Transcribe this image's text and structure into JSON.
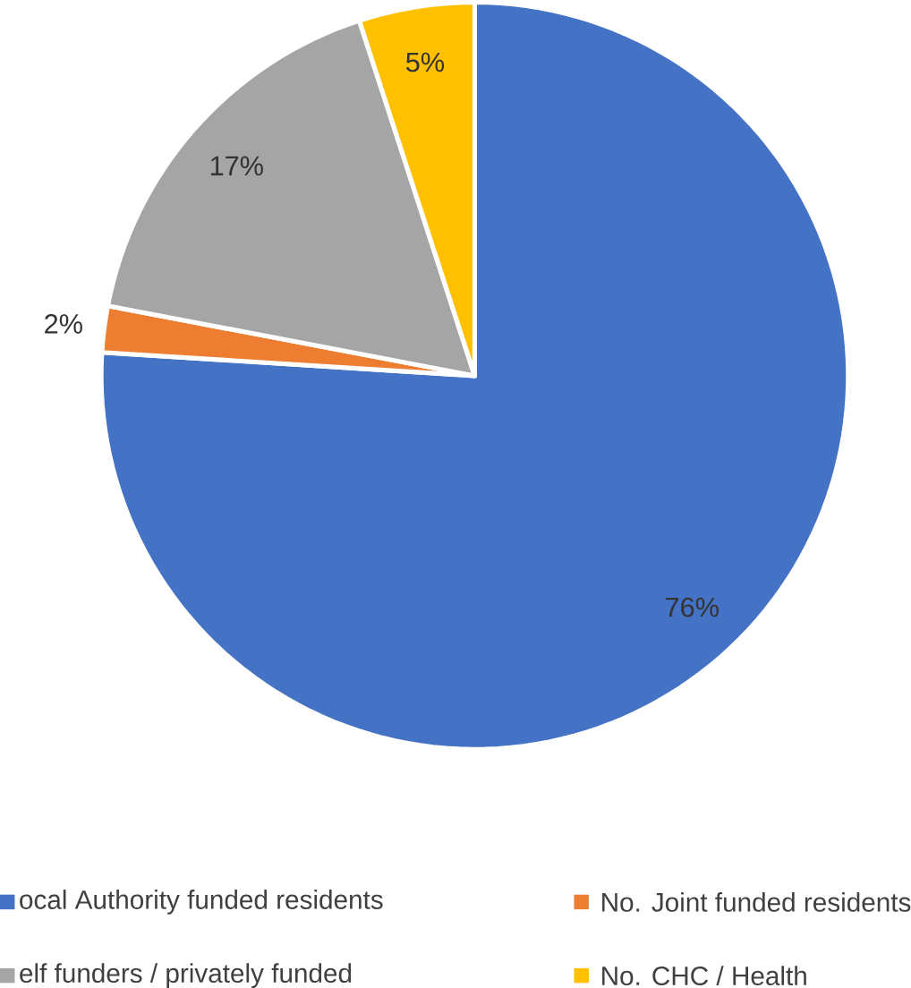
{
  "chart_data": {
    "type": "pie",
    "categories": [
      "ocal Authority funded residents",
      "No. Joint funded residents",
      "elf funders / privately funded",
      "No. CHC / Health"
    ],
    "values": [
      76,
      2,
      17,
      5
    ],
    "colors": [
      "#4472c4",
      "#ed7d31",
      "#a5a5a5",
      "#ffc000"
    ],
    "value_labels": [
      "76%",
      "2%",
      "17%",
      "5%"
    ],
    "legend": "bottom"
  }
}
